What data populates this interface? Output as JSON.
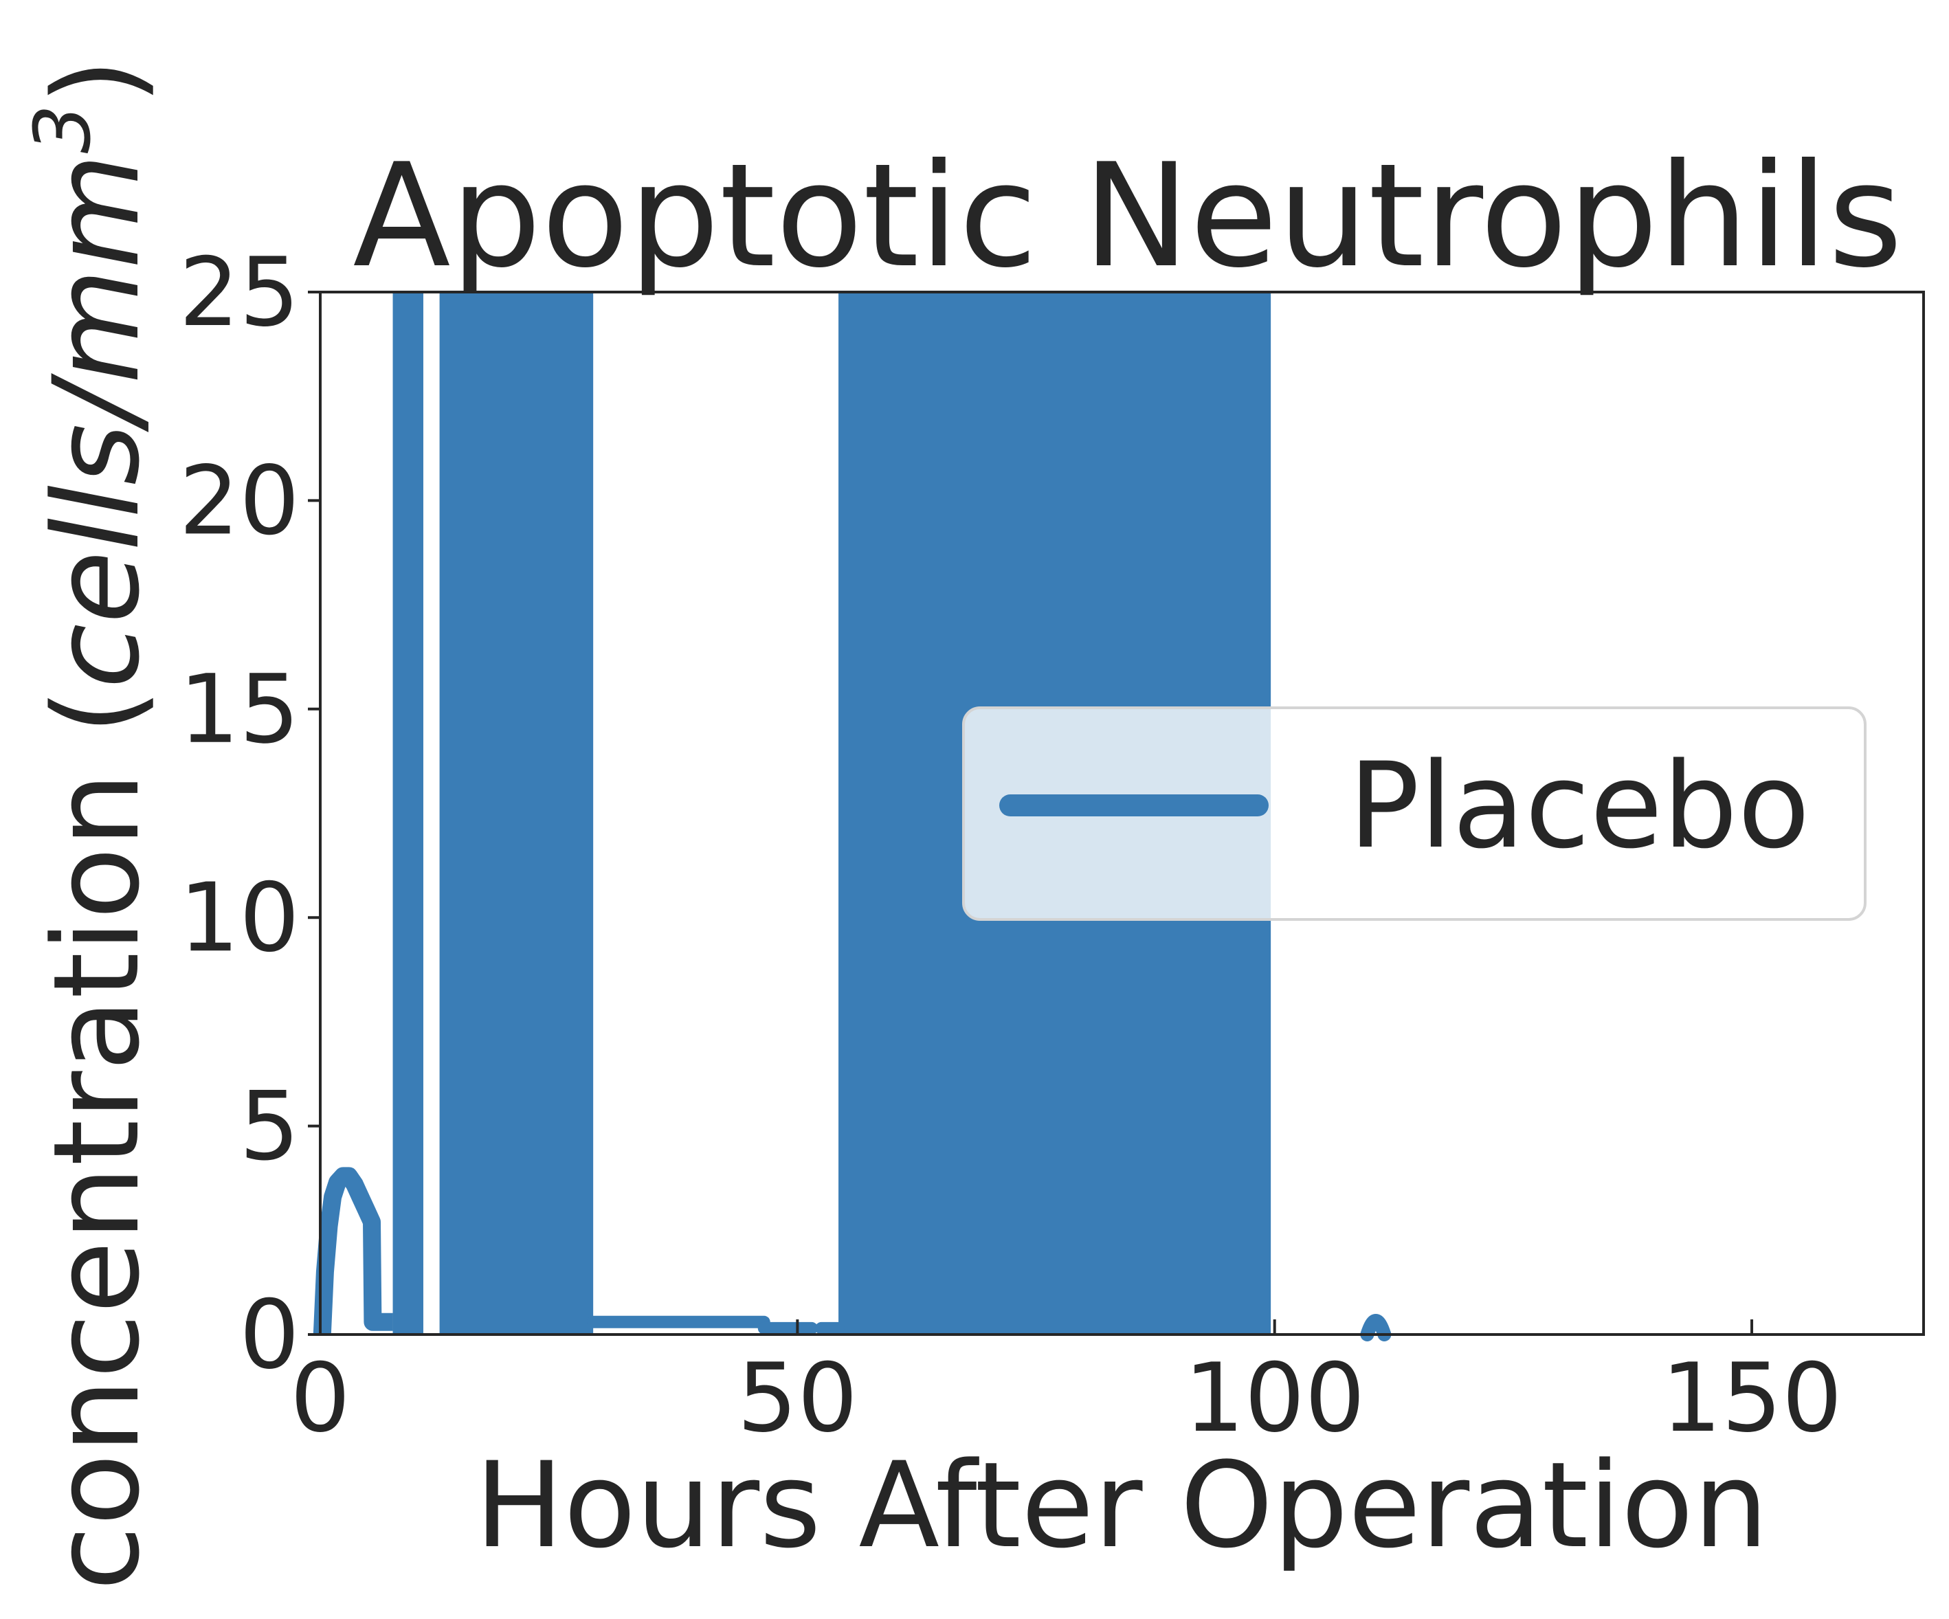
{
  "chart_data": {
    "type": "line",
    "title": "Apoptotic Neutrophils",
    "xlabel": "Hours After Operation",
    "ylabel_main": "concentration (",
    "ylabel_italic": "cells/mm",
    "ylabel_sup": "3",
    "ylabel_close": ")",
    "xlim": [
      0,
      168
    ],
    "ylim": [
      0,
      25
    ],
    "xticks": [
      0,
      50,
      100,
      150
    ],
    "yticks": [
      0,
      5,
      10,
      15,
      20,
      25
    ],
    "grid": false,
    "legend_position": "center-right",
    "series": [
      {
        "name": "Placebo",
        "color": "#3a7db6",
        "shaded_bands": [
          {
            "x0": 7.6,
            "x1": 10.8
          },
          {
            "x0": 12.5,
            "x1": 28.6
          },
          {
            "x0": 54.3,
            "x1": 99.6
          }
        ],
        "baseline_segments": [
          {
            "x0": 28.6,
            "x1": 46.5,
            "y": 0.3
          },
          {
            "x0": 46.5,
            "x1": 51.5,
            "y": 0.15
          },
          {
            "x0": 52.5,
            "x1": 54.3,
            "y": 0.15
          }
        ],
        "points": [
          [
            0.2,
            0.0
          ],
          [
            0.5,
            1.5
          ],
          [
            0.9,
            2.6
          ],
          [
            1.3,
            3.3
          ],
          [
            1.8,
            3.65
          ],
          [
            2.4,
            3.8
          ],
          [
            3.0,
            3.8
          ],
          [
            3.6,
            3.6
          ],
          [
            4.2,
            3.3
          ],
          [
            4.8,
            3.0
          ],
          [
            5.4,
            2.7
          ],
          [
            5.5,
            0.3
          ],
          [
            7.6,
            0.3
          ]
        ],
        "blip": {
          "x": 110.6,
          "y": 0.1
        }
      }
    ]
  }
}
